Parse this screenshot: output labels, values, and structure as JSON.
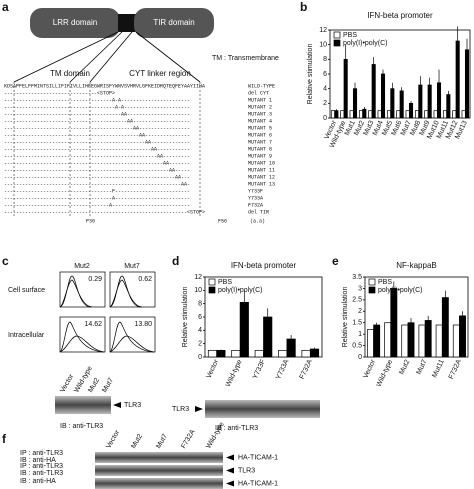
{
  "panels": {
    "a": {
      "letter": "a",
      "lrr": "LRR domain",
      "tir": "TIR domain",
      "tm_domain": "TM domain",
      "cyt": "CYT linker region",
      "tm_note": "TM : Transmembrane",
      "rows": [
        {
          "seq": "KDSAPFELFFMINTSILLIFIFIVLLIHFEGWRISFYWNVSVHRVLGFKEIDRQTEQFEYAAYIIHA",
          "name": "WILD-TYPE"
        },
        {
          "seq": "-------------------------------<STOP>",
          "name": "del CYT"
        },
        {
          "seq": "------------------------------------A-A-----------------------",
          "name": "MUTANT 1"
        },
        {
          "seq": "-------------------------------------A-A----------------------",
          "name": "MUTANT 2"
        },
        {
          "seq": "---------------------------------------AA---------------------",
          "name": "MUTANT 3"
        },
        {
          "seq": "-----------------------------------------AA-------------------",
          "name": "MUTANT 4"
        },
        {
          "seq": "-------------------------------------------AA-----------------",
          "name": "MUTANT 5"
        },
        {
          "seq": "---------------------------------------------AA---------------",
          "name": "MUTANT 6"
        },
        {
          "seq": "-----------------------------------------------AA-------------",
          "name": "MUTANT 7"
        },
        {
          "seq": "-------------------------------------------------AA-----------",
          "name": "MUTANT 8"
        },
        {
          "seq": "---------------------------------------------------AA---------",
          "name": "MUTANT 9"
        },
        {
          "seq": "-----------------------------------------------------AA-------",
          "name": "MUTANT 10"
        },
        {
          "seq": "-------------------------------------------------------AA-----",
          "name": "MUTANT 11"
        },
        {
          "seq": "---------------------------------------------------------AA---",
          "name": "MUTANT 12"
        },
        {
          "seq": "-----------------------------------------------------------AA-",
          "name": "MUTANT 13"
        },
        {
          "seq": "------------------------------------F-------------------------",
          "name": "Y733F"
        },
        {
          "seq": "------------------------------------A-------------------------",
          "name": "Y733A"
        },
        {
          "seq": "-----------------------------------A--------------------------",
          "name": "F732A"
        },
        {
          "seq": "-------------------------------------------------------------<STOP>",
          "name": "del TIR"
        }
      ],
      "positions": [
        "P30",
        "F56",
        "(a.a)"
      ]
    },
    "b": {
      "letter": "b"
    },
    "c": {
      "letter": "c",
      "columns": [
        "Mut2",
        "Mut7"
      ],
      "rows": [
        "Cell surface",
        "Intracellular"
      ],
      "percents": [
        [
          "0.29",
          "0.62"
        ],
        [
          "14.62",
          "13.80"
        ]
      ],
      "lanes": [
        "Vector",
        "Wild-type",
        "Mut2",
        "Mut7"
      ],
      "band": "TLR3",
      "ib": "IB : anti-TLR3"
    },
    "d": {
      "letter": "d",
      "band": "TLR3",
      "ib": "IB : anti-TLR3"
    },
    "e": {
      "letter": "e"
    },
    "f": {
      "letter": "f",
      "lanes": [
        "Vector",
        "Mut2",
        "Mut7",
        "F732A",
        "Wild-type"
      ],
      "rows": [
        {
          "left": [
            "IP : anti-TLR3",
            "IB : anti-HA"
          ],
          "right": "HA-TICAM-1"
        },
        {
          "left": [
            "IP : anti-TLR3",
            "IB : anti-TLR3"
          ],
          "right": "TLR3"
        },
        {
          "left": [
            "IB : anti-HA"
          ],
          "right": "HA-TICAM-1"
        }
      ]
    }
  },
  "chart_data": [
    {
      "type": "bar",
      "title": "IFN-beta promoter",
      "ylabel": "Relative stimulation",
      "categories": [
        "Vector",
        "Wild-type",
        "Mut1",
        "Mut2",
        "Mut3",
        "Mut4",
        "Mut5",
        "Mut6",
        "Mut7",
        "Mut8",
        "Mut9",
        "Mut10",
        "Mut11",
        "Mut12",
        "Mut13"
      ],
      "series": [
        {
          "name": "PBS",
          "color": "#ffffff",
          "values": [
            1,
            1,
            1,
            1,
            1,
            1,
            1,
            1,
            1,
            1,
            1,
            1,
            1,
            1,
            1
          ]
        },
        {
          "name": "poly(I)•poly(C)",
          "color": "#000000",
          "values": [
            1,
            8,
            4,
            1.2,
            7.3,
            6,
            4,
            3.7,
            2,
            4.5,
            4.5,
            4.8,
            3.2,
            10.5,
            9.3
          ],
          "errors": [
            0.2,
            2,
            0.8,
            0.3,
            1,
            0.6,
            0.8,
            0.5,
            0.3,
            1.2,
            1,
            1.8,
            0.5,
            2,
            1.5
          ]
        }
      ],
      "ylim": [
        0,
        12
      ],
      "yticks": [
        0,
        2,
        4,
        6,
        8,
        10,
        12
      ]
    },
    {
      "type": "bar",
      "title": "IFN-beta promoter",
      "ylabel": "Relative stimulation",
      "categories": [
        "Vector",
        "Wild-type",
        "Y733F",
        "Y733A",
        "F732A"
      ],
      "series": [
        {
          "name": "PBS",
          "color": "#ffffff",
          "values": [
            1,
            1,
            1,
            1,
            1
          ]
        },
        {
          "name": "poly(I)•poly(C)",
          "color": "#000000",
          "values": [
            1,
            8.2,
            6,
            2.7,
            1.2
          ],
          "errors": [
            0.1,
            1.7,
            1.3,
            0.6,
            0.2
          ]
        }
      ],
      "ylim": [
        0,
        12
      ],
      "yticks": [
        0,
        2,
        4,
        6,
        8,
        10,
        12
      ]
    },
    {
      "type": "bar",
      "title": "NF-kappaB",
      "ylabel": "Relative stimulation",
      "categories": [
        "Vector",
        "Wild-type",
        "Mut2",
        "Mut7",
        "Mut11",
        "F732A"
      ],
      "series": [
        {
          "name": "PBS",
          "color": "#ffffff",
          "values": [
            1.2,
            1.5,
            1.4,
            1.4,
            1.4,
            1.4
          ]
        },
        {
          "name": "poly(I)•poly(C)",
          "color": "#000000",
          "values": [
            1.4,
            3,
            1.5,
            1.6,
            2.6,
            1.8
          ],
          "errors": [
            0.1,
            0.3,
            0.2,
            0.2,
            0.3,
            0.2
          ]
        }
      ],
      "ylim": [
        0,
        3.5
      ],
      "yticks": [
        0,
        0.5,
        1,
        1.5,
        2,
        2.5,
        3,
        3.5
      ]
    }
  ]
}
